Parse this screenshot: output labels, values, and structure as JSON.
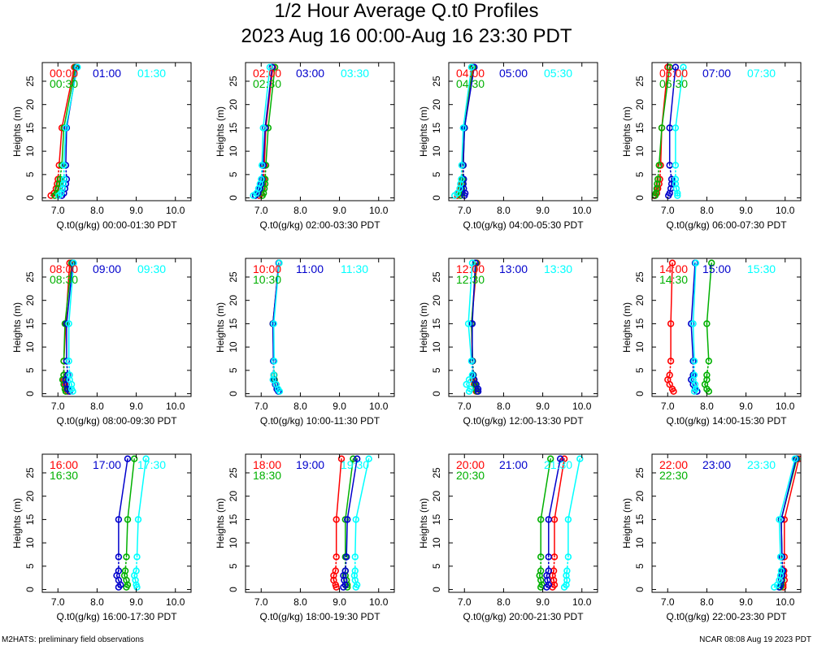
{
  "title": "1/2 Hour Average Q.t0 Profiles",
  "subtitle": "2023 Aug 16 00:00-Aug 16 23:30 PDT",
  "footer_left": "M2HATS: preliminary field observations",
  "footer_right": "NCAR 08:08 Aug 19 2023 PDT",
  "colors": {
    "first": "#ff0000",
    "second": "#0000cc",
    "third": "#00ffff",
    "fourth": "#00b000"
  },
  "chart_data": {
    "type": "line",
    "ylabel": "Heights (m)",
    "xlim": [
      6.6,
      10.4
    ],
    "ylim": [
      -0.6,
      29
    ],
    "xticks": [
      7.0,
      8.0,
      9.0,
      10.0
    ],
    "xtick_labels": [
      "7.0",
      "8.0",
      "9.0",
      "10.0"
    ],
    "yticks": [
      0,
      5,
      10,
      15,
      20,
      25
    ],
    "heights": [
      0.5,
      1,
      2,
      3,
      4,
      7,
      15,
      28
    ],
    "panels": [
      {
        "xlabel": "Q.t0(g/kg) 00:00-01:30 PDT",
        "series": [
          {
            "name": "00:00",
            "color": "#ff0000",
            "x": [
              6.82,
              6.9,
              6.95,
              6.98,
              7.0,
              7.03,
              7.1,
              7.42
            ]
          },
          {
            "name": "00:30",
            "color": "#00b000",
            "x": [
              6.92,
              6.97,
              7.0,
              7.03,
              7.05,
              7.1,
              7.15,
              7.45
            ]
          },
          {
            "name": "01:00",
            "color": "#0000cc",
            "x": [
              7.1,
              7.15,
              7.18,
              7.2,
              7.22,
              7.2,
              7.22,
              7.48
            ]
          },
          {
            "name": "01:30",
            "color": "#00ffff",
            "x": [
              7.02,
              7.08,
              7.12,
              7.14,
              7.16,
              7.15,
              7.2,
              7.5
            ]
          }
        ]
      },
      {
        "xlabel": "Q.t0(g/kg) 02:00-03:30 PDT",
        "series": [
          {
            "name": "02:00",
            "color": "#ff0000",
            "x": [
              6.95,
              7.0,
              7.03,
              7.05,
              7.06,
              7.08,
              7.12,
              7.3
            ]
          },
          {
            "name": "02:30",
            "color": "#00b000",
            "x": [
              7.03,
              7.06,
              7.08,
              7.1,
              7.1,
              7.12,
              7.18,
              7.35
            ]
          },
          {
            "name": "03:00",
            "color": "#0000cc",
            "x": [
              6.85,
              6.92,
              6.97,
              7.0,
              7.02,
              7.05,
              7.1,
              7.28
            ]
          },
          {
            "name": "03:30",
            "color": "#00ffff",
            "x": [
              6.8,
              6.88,
              6.93,
              6.97,
              7.0,
              7.02,
              7.05,
              7.22
            ]
          }
        ]
      },
      {
        "xlabel": "Q.t0(g/kg) 04:00-05:30 PDT",
        "series": [
          {
            "name": "04:00",
            "color": "#ff0000",
            "x": [
              6.82,
              6.85,
              6.9,
              6.93,
              6.95,
              6.95,
              7.0,
              7.2
            ]
          },
          {
            "name": "04:30",
            "color": "#00b000",
            "x": [
              6.9,
              6.92,
              6.93,
              6.95,
              6.96,
              6.97,
              7.0,
              7.22
            ]
          },
          {
            "name": "05:00",
            "color": "#0000cc",
            "x": [
              7.0,
              7.02,
              6.98,
              6.97,
              6.98,
              6.97,
              7.0,
              7.25
            ]
          },
          {
            "name": "05:30",
            "color": "#00ffff",
            "x": [
              6.75,
              6.82,
              6.88,
              6.9,
              6.92,
              6.93,
              6.97,
              7.18
            ]
          }
        ]
      },
      {
        "xlabel": "Q.t0(g/kg) 06:00-07:30 PDT",
        "series": [
          {
            "name": "06:00",
            "color": "#ff0000",
            "x": [
              6.65,
              6.72,
              6.75,
              6.78,
              6.8,
              6.82,
              6.85,
              7.0
            ]
          },
          {
            "name": "06:30",
            "color": "#00b000",
            "x": [
              6.68,
              6.7,
              6.72,
              6.73,
              6.75,
              6.78,
              6.85,
              7.05
            ]
          },
          {
            "name": "07:00",
            "color": "#0000cc",
            "x": [
              7.02,
              7.05,
              7.08,
              7.1,
              7.1,
              7.05,
              7.05,
              7.2
            ]
          },
          {
            "name": "07:30",
            "color": "#00ffff",
            "x": [
              7.25,
              7.25,
              7.22,
              7.2,
              7.2,
              7.2,
              7.2,
              7.4
            ]
          }
        ]
      },
      {
        "xlabel": "Q.t0(g/kg) 08:00-09:30 PDT",
        "series": [
          {
            "name": "08:00",
            "color": "#ff0000",
            "x": [
              7.25,
              7.22,
              7.18,
              7.15,
              7.15,
              7.15,
              7.2,
              7.3
            ]
          },
          {
            "name": "08:30",
            "color": "#00b000",
            "x": [
              7.2,
              7.18,
              7.15,
              7.12,
              7.15,
              7.15,
              7.18,
              7.35
            ]
          },
          {
            "name": "09:00",
            "color": "#0000cc",
            "x": [
              7.3,
              7.25,
              7.22,
              7.2,
              7.25,
              7.22,
              7.22,
              7.38
            ]
          },
          {
            "name": "09:30",
            "color": "#00ffff",
            "x": [
              7.38,
              7.35,
              7.35,
              7.3,
              7.3,
              7.28,
              7.28,
              7.4
            ]
          }
        ]
      },
      {
        "xlabel": "Q.t0(g/kg) 10:00-11:30 PDT",
        "series": [
          {
            "name": "10:00",
            "color": "#ff0000",
            "x": [
              7.45,
              7.42,
              7.38,
              7.33,
              7.32,
              7.32,
              7.3,
              7.45
            ]
          },
          {
            "name": "10:30",
            "color": "#00b000",
            "x": [
              7.46,
              7.42,
              7.38,
              7.34,
              7.33,
              7.32,
              7.3,
              7.46
            ]
          },
          {
            "name": "11:00",
            "color": "#0000cc",
            "x": [
              7.44,
              7.4,
              7.36,
              7.32,
              7.32,
              7.31,
              7.3,
              7.45
            ]
          },
          {
            "name": "11:30",
            "color": "#00ffff",
            "x": [
              7.47,
              7.43,
              7.38,
              7.3,
              7.32,
              7.33,
              7.32,
              7.46
            ]
          }
        ]
      },
      {
        "xlabel": "Q.t0(g/kg) 12:00-13:30 PDT",
        "series": [
          {
            "name": "12:00",
            "color": "#ff0000",
            "x": [
              7.3,
              7.28,
              7.25,
              7.22,
              7.22,
              7.2,
              7.18,
              7.32
            ]
          },
          {
            "name": "12:30",
            "color": "#00b000",
            "x": [
              7.32,
              7.3,
              7.27,
              7.24,
              7.23,
              7.21,
              7.18,
              7.3
            ]
          },
          {
            "name": "13:00",
            "color": "#0000cc",
            "x": [
              7.35,
              7.35,
              7.3,
              7.25,
              7.22,
              7.2,
              7.2,
              7.28
            ]
          },
          {
            "name": "13:30",
            "color": "#00ffff",
            "x": [
              7.12,
              7.15,
              7.05,
              7.12,
              7.2,
              7.18,
              7.1,
              7.2
            ]
          }
        ]
      },
      {
        "xlabel": "Q.t0(g/kg) 14:00-15:30 PDT",
        "series": [
          {
            "name": "14:00",
            "color": "#ff0000",
            "x": [
              7.15,
              7.12,
              7.05,
              7.0,
              7.05,
              7.08,
              7.08,
              7.12
            ]
          },
          {
            "name": "14:30",
            "color": "#00b000",
            "x": [
              8.05,
              8.0,
              7.95,
              8.0,
              8.0,
              8.05,
              8.0,
              8.12
            ]
          },
          {
            "name": "15:00",
            "color": "#0000cc",
            "x": [
              7.75,
              7.7,
              7.65,
              7.6,
              7.65,
              7.65,
              7.6,
              7.7
            ]
          },
          {
            "name": "15:30",
            "color": "#00ffff",
            "x": [
              7.68,
              7.72,
              7.7,
              7.65,
              7.68,
              7.68,
              7.65,
              7.72
            ]
          }
        ]
      },
      {
        "xlabel": "Q.t0(g/kg) 16:00-17:30 PDT",
        "series": [
          {
            "name": "16:00",
            "color": "#ff0000",
            "x": [],
            "note": "no data"
          },
          {
            "name": "16:30",
            "color": "#00b000",
            "x": [
              8.75,
              8.78,
              8.75,
              8.7,
              8.72,
              8.75,
              8.78,
              8.95
            ]
          },
          {
            "name": "17:00",
            "color": "#0000cc",
            "x": [
              8.55,
              8.6,
              8.55,
              8.5,
              8.55,
              8.55,
              8.55,
              8.78
            ]
          },
          {
            "name": "17:30",
            "color": "#00ffff",
            "x": [
              9.02,
              9.0,
              8.98,
              8.95,
              9.0,
              9.02,
              9.05,
              9.25
            ]
          }
        ]
      },
      {
        "xlabel": "Q.t0(g/kg) 18:00-19:30 PDT",
        "series": [
          {
            "name": "18:00",
            "color": "#ff0000",
            "x": [
              8.92,
              8.9,
              8.85,
              8.85,
              8.9,
              8.92,
              8.92,
              9.05
            ]
          },
          {
            "name": "18:30",
            "color": "#00b000",
            "x": [
              9.2,
              9.2,
              9.18,
              9.15,
              9.15,
              9.15,
              9.15,
              9.35
            ]
          },
          {
            "name": "19:00",
            "color": "#0000cc",
            "x": [
              9.1,
              9.15,
              9.12,
              9.1,
              9.15,
              9.18,
              9.2,
              9.45
            ]
          },
          {
            "name": "19:30",
            "color": "#00ffff",
            "x": [
              9.42,
              9.45,
              9.4,
              9.38,
              9.4,
              9.4,
              9.42,
              9.75
            ]
          }
        ]
      },
      {
        "xlabel": "Q.t0(g/kg) 20:00-21:30 PDT",
        "series": [
          {
            "name": "20:00",
            "color": "#ff0000",
            "x": [
              9.25,
              9.3,
              9.28,
              9.25,
              9.28,
              9.3,
              9.3,
              9.55
            ]
          },
          {
            "name": "20:30",
            "color": "#00b000",
            "x": [
              8.95,
              8.98,
              8.95,
              8.92,
              8.95,
              8.95,
              8.95,
              9.2
            ]
          },
          {
            "name": "21:00",
            "color": "#0000cc",
            "x": [
              9.1,
              9.15,
              9.12,
              9.1,
              9.15,
              9.15,
              9.15,
              9.45
            ]
          },
          {
            "name": "21:30",
            "color": "#00ffff",
            "x": [
              9.55,
              9.6,
              9.62,
              9.6,
              9.62,
              9.65,
              9.65,
              9.95
            ]
          }
        ]
      },
      {
        "xlabel": "Q.t0(g/kg) 22:00-23:30 PDT",
        "series": [
          {
            "name": "22:00",
            "color": "#ff0000",
            "x": [
              9.95,
              9.95,
              9.98,
              9.97,
              9.97,
              9.98,
              9.98,
              10.35
            ]
          },
          {
            "name": "22:30",
            "color": "#00b000",
            "x": [
              9.88,
              9.9,
              9.92,
              9.92,
              9.93,
              9.92,
              9.9,
              10.3
            ]
          },
          {
            "name": "23:00",
            "color": "#0000cc",
            "x": [
              9.85,
              9.88,
              9.9,
              9.92,
              9.94,
              9.92,
              9.9,
              10.28
            ]
          },
          {
            "name": "23:30",
            "color": "#00ffff",
            "x": [
              9.72,
              9.8,
              9.85,
              9.88,
              9.9,
              9.88,
              9.85,
              10.25
            ]
          }
        ]
      }
    ]
  }
}
